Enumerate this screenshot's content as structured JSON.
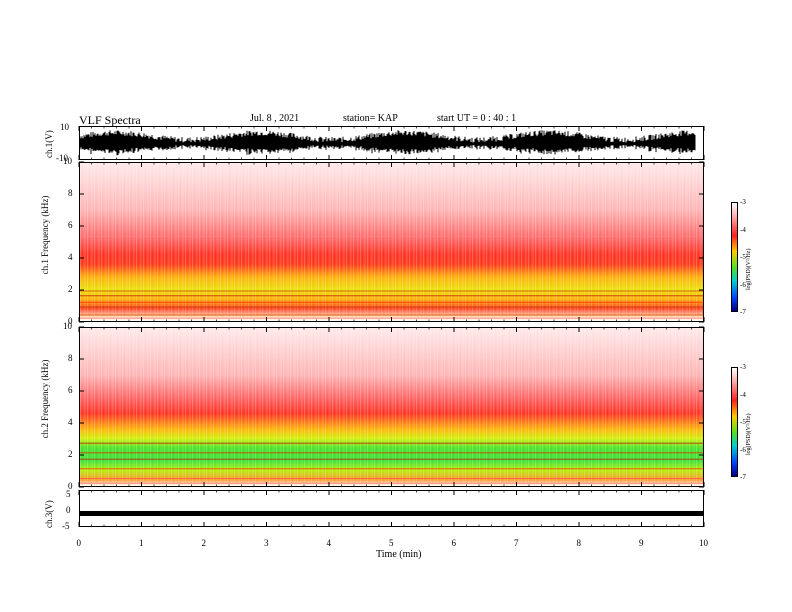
{
  "header": {
    "title": "VLF Spectra",
    "date": "Jul. 8 , 2021",
    "station": "station= KAP",
    "start": "start UT = 0 : 40 : 1"
  },
  "chart_data": [
    {
      "type": "line",
      "ylabel": "ch.1(V)",
      "ylim": [
        -10,
        10
      ],
      "y_ticks": [
        "10",
        "-10"
      ],
      "note": "dense oscillating signal"
    },
    {
      "type": "heatmap",
      "ylabel": "ch.1 Frequency (kHz)",
      "ylim": [
        0,
        10
      ],
      "y_ticks": [
        "0",
        "2",
        "4",
        "6",
        "8",
        "10"
      ],
      "colorbar": {
        "label": "log(PSD)(V²/Hz)",
        "ticks": [
          "-3",
          "-4",
          "-5",
          "-6",
          "-7"
        ],
        "range": [
          -7,
          -3
        ]
      }
    },
    {
      "type": "heatmap",
      "ylabel": "ch.2 Frequency (kHz)",
      "ylim": [
        0,
        10
      ],
      "y_ticks": [
        "0",
        "2",
        "4",
        "6",
        "8",
        "10"
      ],
      "colorbar": {
        "label": "log(PSD)(V²/Hz)",
        "ticks": [
          "-3",
          "-4",
          "-5",
          "-6",
          "-7"
        ],
        "range": [
          -7,
          -3
        ]
      }
    },
    {
      "type": "line",
      "ylabel": "ch.3(V)",
      "ylim": [
        -5,
        5
      ],
      "y_ticks": [
        "5",
        "0",
        "-5"
      ],
      "note": "flat band near -1"
    }
  ],
  "xaxis": {
    "label": "Time (min)",
    "xlim": [
      0,
      10
    ],
    "ticks": [
      "0",
      "1",
      "2",
      "3",
      "4",
      "5",
      "6",
      "7",
      "8",
      "9",
      "10"
    ]
  }
}
